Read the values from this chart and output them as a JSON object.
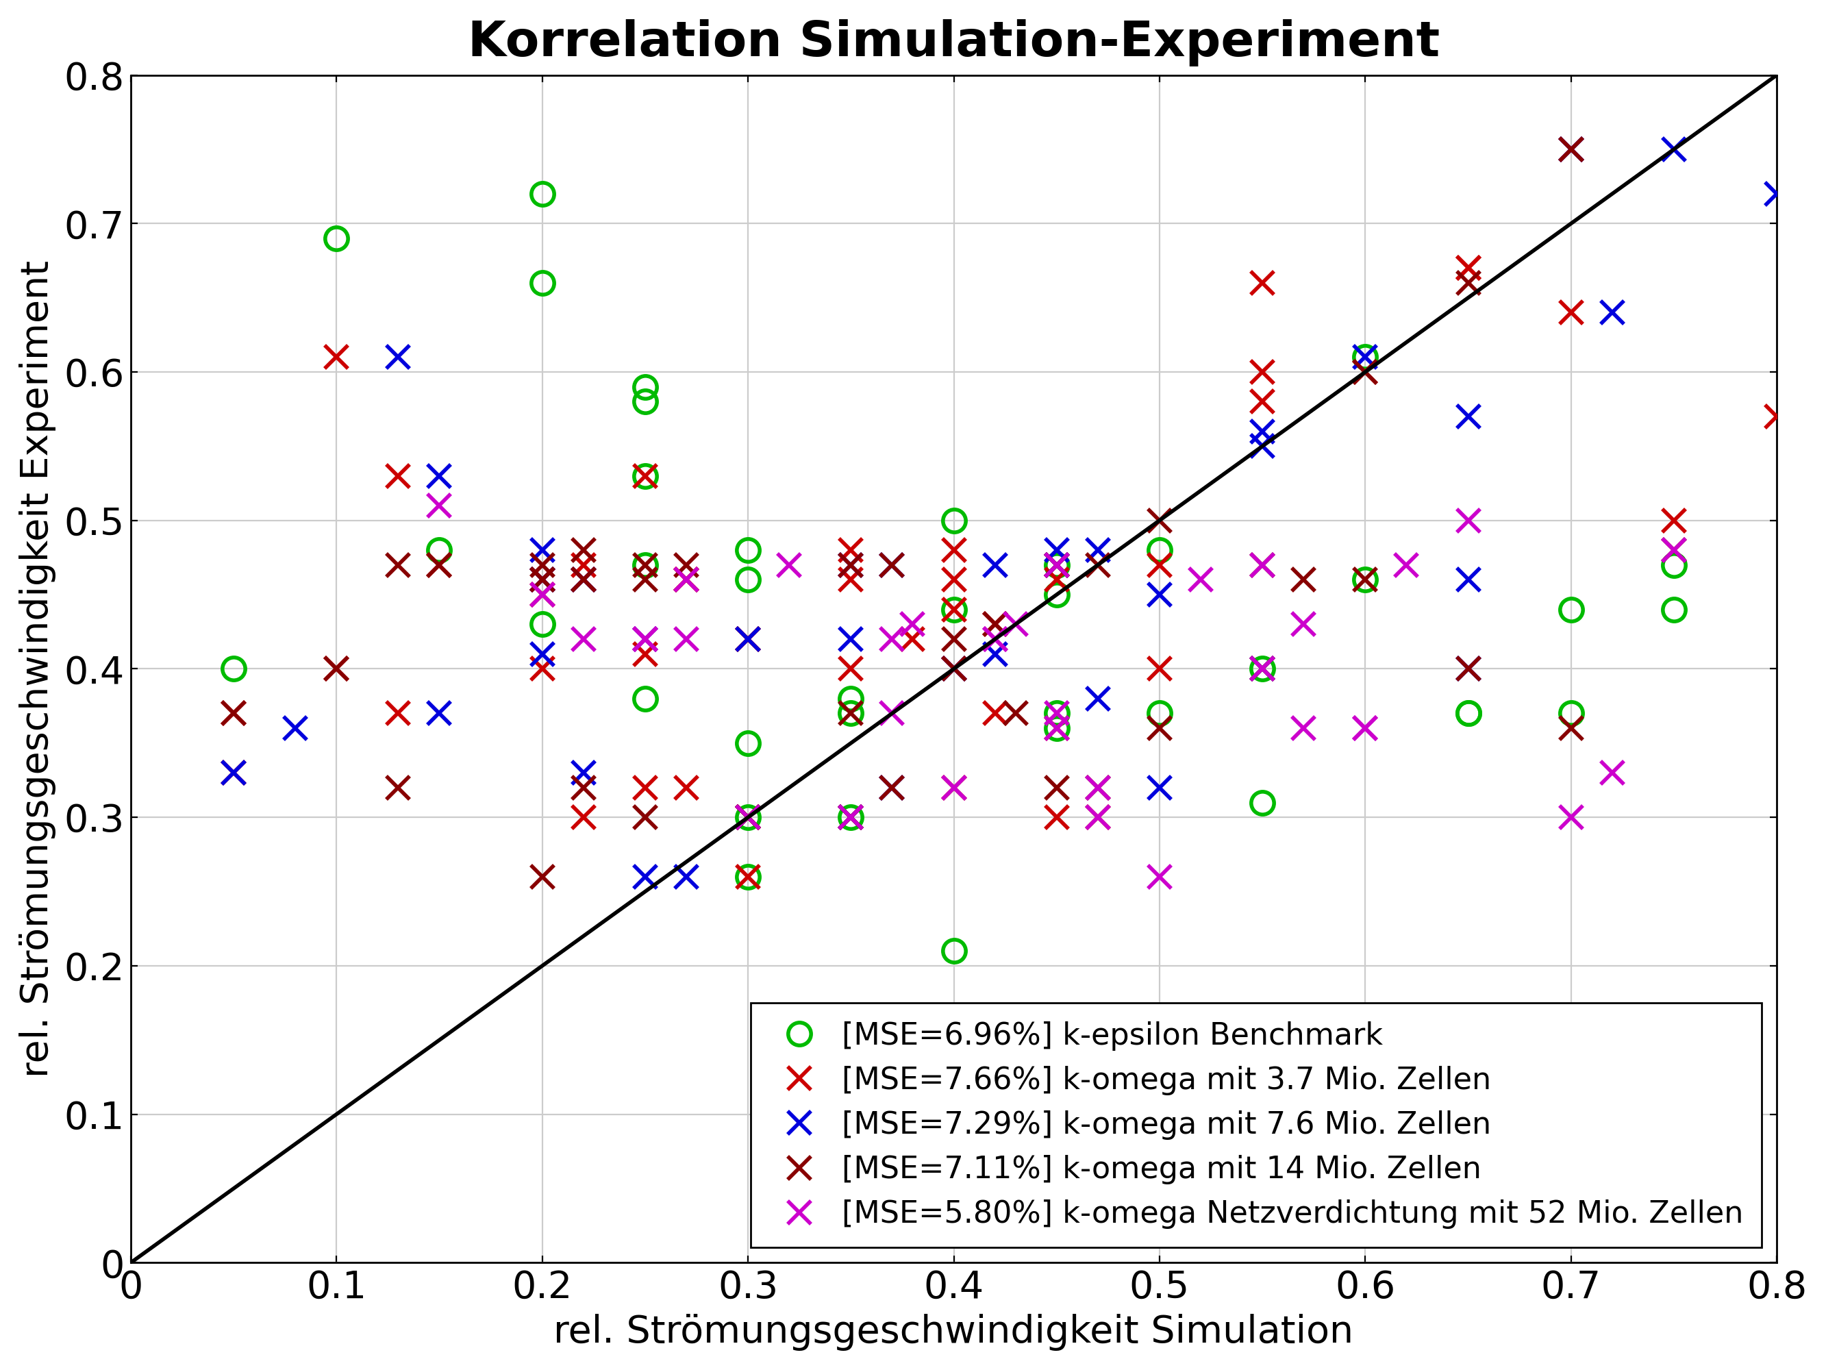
{
  "title": "Korrelation Simulation-Experiment",
  "xlabel": "rel. Strömungsgeschwindigkeit Simulation",
  "ylabel": "rel. Strömungsgeschwindigkeit Experiment",
  "xlim": [
    0,
    0.8
  ],
  "ylim": [
    0,
    0.8
  ],
  "xticks": [
    0,
    0.1,
    0.2,
    0.3,
    0.4,
    0.5,
    0.6,
    0.7,
    0.8
  ],
  "yticks": [
    0,
    0.1,
    0.2,
    0.3,
    0.4,
    0.5,
    0.6,
    0.7,
    0.8
  ],
  "series": [
    {
      "label": "[MSE=6.96%] k-epsilon Benchmark",
      "color": "#00bb00",
      "marker": "o",
      "x": [
        0.05,
        0.1,
        0.15,
        0.2,
        0.2,
        0.2,
        0.25,
        0.25,
        0.25,
        0.25,
        0.25,
        0.3,
        0.3,
        0.3,
        0.3,
        0.3,
        0.35,
        0.35,
        0.35,
        0.4,
        0.4,
        0.4,
        0.45,
        0.45,
        0.45,
        0.45,
        0.5,
        0.5,
        0.55,
        0.55,
        0.6,
        0.6,
        0.65,
        0.65,
        0.7,
        0.7,
        0.75,
        0.75
      ],
      "y": [
        0.4,
        0.69,
        0.48,
        0.72,
        0.66,
        0.43,
        0.53,
        0.47,
        0.59,
        0.58,
        0.38,
        0.48,
        0.46,
        0.35,
        0.3,
        0.26,
        0.38,
        0.37,
        0.3,
        0.5,
        0.44,
        0.21,
        0.37,
        0.45,
        0.47,
        0.36,
        0.48,
        0.37,
        0.4,
        0.31,
        0.61,
        0.46,
        0.37,
        0.37,
        0.37,
        0.44,
        0.47,
        0.44
      ]
    },
    {
      "label": "[MSE=7.66%] k-omega mit 3.7 Mio. Zellen",
      "color": "#cc0000",
      "marker": "x",
      "x": [
        0.05,
        0.05,
        0.1,
        0.1,
        0.13,
        0.13,
        0.15,
        0.2,
        0.2,
        0.2,
        0.2,
        0.22,
        0.22,
        0.22,
        0.25,
        0.25,
        0.25,
        0.27,
        0.27,
        0.27,
        0.3,
        0.3,
        0.3,
        0.3,
        0.35,
        0.35,
        0.35,
        0.35,
        0.38,
        0.4,
        0.4,
        0.4,
        0.4,
        0.4,
        0.42,
        0.42,
        0.45,
        0.45,
        0.45,
        0.45,
        0.47,
        0.5,
        0.5,
        0.55,
        0.55,
        0.55,
        0.6,
        0.65,
        0.65,
        0.7,
        0.7,
        0.75,
        0.8
      ],
      "y": [
        0.37,
        0.33,
        0.61,
        0.4,
        0.53,
        0.37,
        0.47,
        0.46,
        0.46,
        0.45,
        0.4,
        0.47,
        0.46,
        0.3,
        0.53,
        0.32,
        0.41,
        0.46,
        0.46,
        0.32,
        0.3,
        0.42,
        0.42,
        0.26,
        0.4,
        0.48,
        0.46,
        0.3,
        0.42,
        0.48,
        0.46,
        0.44,
        0.4,
        0.32,
        0.43,
        0.37,
        0.47,
        0.46,
        0.36,
        0.3,
        0.3,
        0.47,
        0.4,
        0.66,
        0.6,
        0.58,
        0.6,
        0.67,
        0.67,
        0.75,
        0.64,
        0.5,
        0.57
      ]
    },
    {
      "label": "[MSE=7.29%] k-omega mit 7.6 Mio. Zellen",
      "color": "#0000dd",
      "marker": "x",
      "x": [
        0.05,
        0.08,
        0.13,
        0.15,
        0.15,
        0.2,
        0.2,
        0.2,
        0.22,
        0.22,
        0.25,
        0.25,
        0.27,
        0.3,
        0.3,
        0.35,
        0.35,
        0.35,
        0.37,
        0.37,
        0.4,
        0.42,
        0.42,
        0.45,
        0.45,
        0.47,
        0.47,
        0.5,
        0.5,
        0.55,
        0.55,
        0.55,
        0.6,
        0.65,
        0.65,
        0.65,
        0.7,
        0.72,
        0.75,
        0.8
      ],
      "y": [
        0.33,
        0.36,
        0.61,
        0.53,
        0.37,
        0.48,
        0.46,
        0.41,
        0.46,
        0.33,
        0.42,
        0.26,
        0.26,
        0.42,
        0.3,
        0.47,
        0.42,
        0.3,
        0.47,
        0.32,
        0.4,
        0.41,
        0.47,
        0.48,
        0.47,
        0.48,
        0.38,
        0.45,
        0.32,
        0.55,
        0.56,
        0.4,
        0.61,
        0.57,
        0.46,
        0.4,
        0.75,
        0.64,
        0.75,
        0.72
      ]
    },
    {
      "label": "[MSE=7.11%] k-omega mit 14 Mio. Zellen",
      "color": "#880000",
      "marker": "x",
      "x": [
        0.05,
        0.1,
        0.13,
        0.13,
        0.15,
        0.2,
        0.2,
        0.2,
        0.22,
        0.22,
        0.22,
        0.25,
        0.25,
        0.25,
        0.27,
        0.3,
        0.3,
        0.3,
        0.35,
        0.35,
        0.35,
        0.37,
        0.37,
        0.4,
        0.4,
        0.42,
        0.43,
        0.45,
        0.45,
        0.47,
        0.47,
        0.5,
        0.5,
        0.55,
        0.55,
        0.57,
        0.6,
        0.6,
        0.65,
        0.65,
        0.7,
        0.7,
        0.75
      ],
      "y": [
        0.37,
        0.4,
        0.47,
        0.32,
        0.47,
        0.47,
        0.46,
        0.26,
        0.48,
        0.46,
        0.32,
        0.47,
        0.46,
        0.3,
        0.47,
        0.3,
        0.3,
        0.3,
        0.47,
        0.37,
        0.3,
        0.47,
        0.32,
        0.42,
        0.4,
        0.43,
        0.37,
        0.47,
        0.32,
        0.47,
        0.32,
        0.5,
        0.36,
        0.47,
        0.4,
        0.46,
        0.6,
        0.46,
        0.66,
        0.4,
        0.75,
        0.36,
        0.48
      ]
    },
    {
      "label": "[MSE=5.80%] k-omega Netzverdichtung mit 52 Mio. Zellen",
      "color": "#cc00cc",
      "marker": "x",
      "x": [
        0.15,
        0.2,
        0.22,
        0.25,
        0.25,
        0.27,
        0.27,
        0.3,
        0.32,
        0.35,
        0.37,
        0.37,
        0.38,
        0.4,
        0.42,
        0.42,
        0.43,
        0.45,
        0.45,
        0.45,
        0.47,
        0.47,
        0.5,
        0.52,
        0.55,
        0.55,
        0.57,
        0.57,
        0.6,
        0.6,
        0.62,
        0.65,
        0.7,
        0.72,
        0.75
      ],
      "y": [
        0.51,
        0.45,
        0.42,
        0.42,
        0.42,
        0.46,
        0.42,
        0.3,
        0.47,
        0.3,
        0.42,
        0.37,
        0.43,
        0.32,
        0.42,
        0.42,
        0.43,
        0.47,
        0.36,
        0.37,
        0.32,
        0.3,
        0.26,
        0.46,
        0.47,
        0.4,
        0.43,
        0.36,
        0.36,
        0.36,
        0.47,
        0.5,
        0.3,
        0.33,
        0.48
      ]
    }
  ],
  "markersize": 12,
  "linewidth": 2.0,
  "title_fontsize": 26,
  "label_fontsize": 20,
  "tick_fontsize": 20,
  "legend_fontsize": 16
}
